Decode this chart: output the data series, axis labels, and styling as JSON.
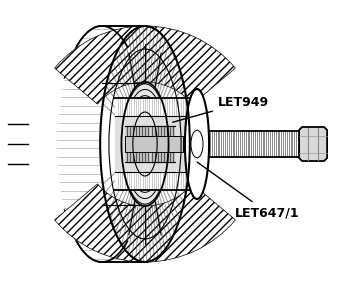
{
  "background_color": "#ffffff",
  "outline_color": "#000000",
  "label_let647": "LET647/1",
  "label_let949": "LET949",
  "label_fontsize": 9,
  "label_fontweight": "bold",
  "figsize": [
    3.55,
    2.94
  ],
  "dpi": 100
}
